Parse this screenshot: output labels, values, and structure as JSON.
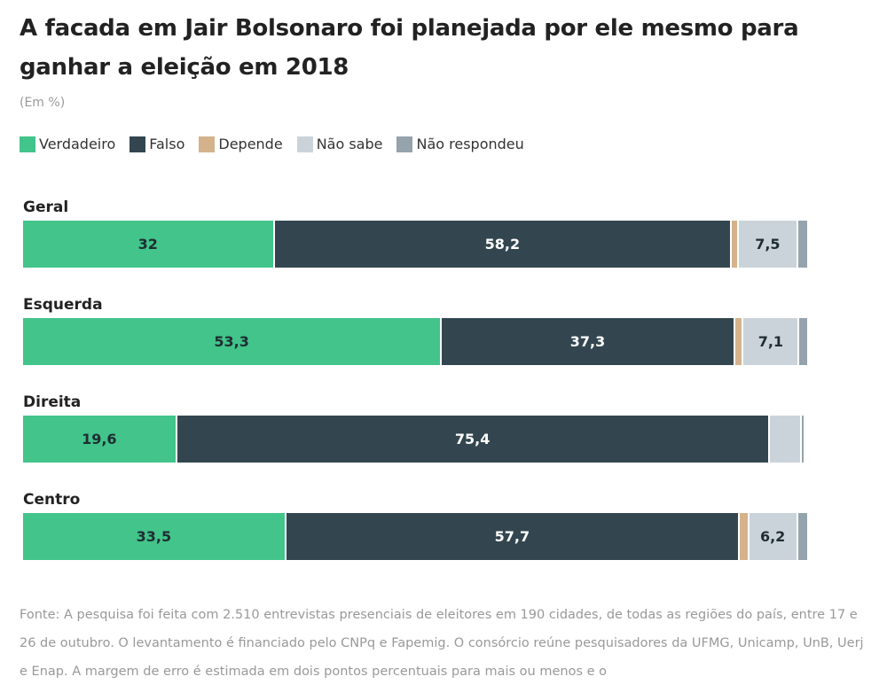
{
  "header": {
    "title": "A facada em Jair Bolsonaro foi planejada por ele mesmo para ganhar a eleição em 2018",
    "subtitle": "(Em %)"
  },
  "footer": {
    "text": "Fonte: A pesquisa foi feita com 2.510 entrevistas presenciais de eleitores em 190 cidades, de todas as regiões do país, entre 17 e 26 de outubro. O levantamento é financiado pelo CNPq e Fapemig. O consórcio reúne pesquisadores da UFMG, Unicamp, UnB, Uerj e Enap. A margem de erro é estimada em dois pontos percentuais para mais ou menos e o"
  },
  "chart_data": {
    "type": "bar",
    "orientation": "horizontal-stacked-100",
    "title": "A facada em Jair Bolsonaro foi planejada por ele mesmo para ganhar a eleição em 2018",
    "subtitle": "(Em %)",
    "legend_position": "top-left",
    "categories": [
      "Geral",
      "Esquerda",
      "Direita",
      "Centro"
    ],
    "series": [
      {
        "name": "Verdadeiro",
        "color": "#42c48a",
        "label_color": "#1f2d33",
        "values": [
          32,
          53.3,
          19.6,
          33.5
        ],
        "labels": [
          "32",
          "53,3",
          "19,6",
          "33,5"
        ]
      },
      {
        "name": "Falso",
        "color": "#33464f",
        "label_color": "#ffffff",
        "values": [
          58.2,
          37.3,
          75.4,
          57.7
        ],
        "labels": [
          "58,2",
          "37,3",
          "75,4",
          "57,7"
        ]
      },
      {
        "name": "Depende",
        "color": "#d4b28c",
        "label_color": "#1f2d33",
        "values": [
          0.9,
          1.1,
          0,
          1.2
        ],
        "labels": [
          "",
          "",
          "",
          ""
        ]
      },
      {
        "name": "Não sabe",
        "color": "#cbd3da",
        "label_color": "#1f2d33",
        "values": [
          7.5,
          7.1,
          4.1,
          6.2
        ],
        "labels": [
          "7,5",
          "7,1",
          "",
          "6,2"
        ]
      },
      {
        "name": "Não respondeu",
        "color": "#95a3ad",
        "label_color": "#1f2d33",
        "values": [
          1.4,
          1.2,
          0.5,
          1.4
        ],
        "labels": [
          "",
          "",
          "",
          ""
        ]
      }
    ],
    "xlim": [
      0,
      100
    ]
  }
}
